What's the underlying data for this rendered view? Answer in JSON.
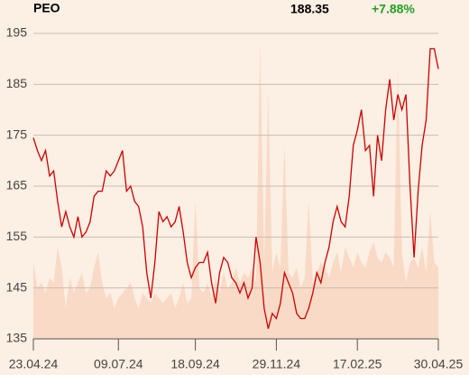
{
  "chart_data": {
    "type": "line",
    "title": "PEO",
    "last_price": "188.35",
    "change": "+7.88%",
    "color": "#cc0000",
    "area_color": "#f8dac6",
    "change_color": "#22a022",
    "grid": true,
    "ylim": [
      135,
      195
    ],
    "yticks": [
      135,
      145,
      155,
      165,
      175,
      185,
      195
    ],
    "categories": [
      "23.04.24",
      null,
      null,
      null,
      null,
      null,
      null,
      null,
      null,
      null,
      null,
      null,
      null,
      null,
      null,
      null,
      null,
      null,
      null,
      null,
      null,
      "09.07.24",
      null,
      null,
      null,
      null,
      null,
      null,
      null,
      null,
      null,
      null,
      null,
      null,
      null,
      null,
      null,
      null,
      null,
      null,
      "18.09.24",
      null,
      null,
      null,
      null,
      null,
      null,
      null,
      null,
      null,
      null,
      null,
      null,
      null,
      null,
      null,
      null,
      null,
      null,
      null,
      "29.11.24",
      null,
      null,
      null,
      null,
      null,
      null,
      null,
      null,
      null,
      null,
      null,
      null,
      null,
      null,
      null,
      null,
      null,
      null,
      null,
      "17.02.25",
      null,
      null,
      null,
      null,
      null,
      null,
      null,
      null,
      null,
      null,
      null,
      null,
      null,
      null,
      null,
      null,
      null,
      null,
      null,
      "30.04.25"
    ],
    "values": [
      174.5,
      172,
      170,
      172,
      167,
      168,
      162,
      157,
      160,
      157,
      155,
      159,
      155,
      156,
      158,
      163,
      164,
      164,
      168,
      167,
      168,
      170,
      172,
      164,
      165,
      162,
      161,
      157,
      148,
      143,
      150,
      160,
      158,
      159,
      157,
      158,
      161,
      156,
      150,
      147,
      149,
      150,
      150,
      152,
      146,
      142,
      148,
      151,
      150,
      147,
      146,
      144,
      146,
      143,
      145,
      155,
      150,
      141,
      137,
      140,
      139,
      142,
      148,
      146,
      144,
      140,
      139,
      139,
      141,
      144,
      148,
      146,
      150,
      153,
      158,
      161,
      158,
      157,
      163,
      173,
      176,
      180,
      172,
      173,
      163,
      175,
      170,
      180,
      186,
      178,
      183,
      180,
      183,
      165,
      151,
      164,
      173,
      178,
      192,
      192,
      188
    ],
    "area_values": [
      150,
      145,
      146,
      144,
      147,
      146,
      153,
      149,
      141,
      147,
      144,
      146,
      148,
      144,
      145,
      149,
      152,
      146,
      143,
      144,
      141,
      143,
      144,
      145,
      146,
      143,
      141,
      144,
      143,
      142,
      144,
      143,
      142,
      143,
      144,
      141,
      143,
      146,
      142,
      143,
      162,
      145,
      144,
      146,
      143,
      147,
      144,
      148,
      145,
      146,
      149,
      146,
      148,
      147,
      149,
      146,
      193,
      150,
      183,
      148,
      152,
      149,
      173,
      148,
      147,
      149,
      145,
      147,
      162,
      146,
      148,
      150,
      149,
      147,
      150,
      152,
      148,
      153,
      151,
      149,
      152,
      150,
      149,
      152,
      154,
      151,
      150,
      152,
      151,
      149,
      188,
      152,
      146,
      150,
      151,
      149,
      153,
      148,
      160,
      150,
      149
    ]
  }
}
